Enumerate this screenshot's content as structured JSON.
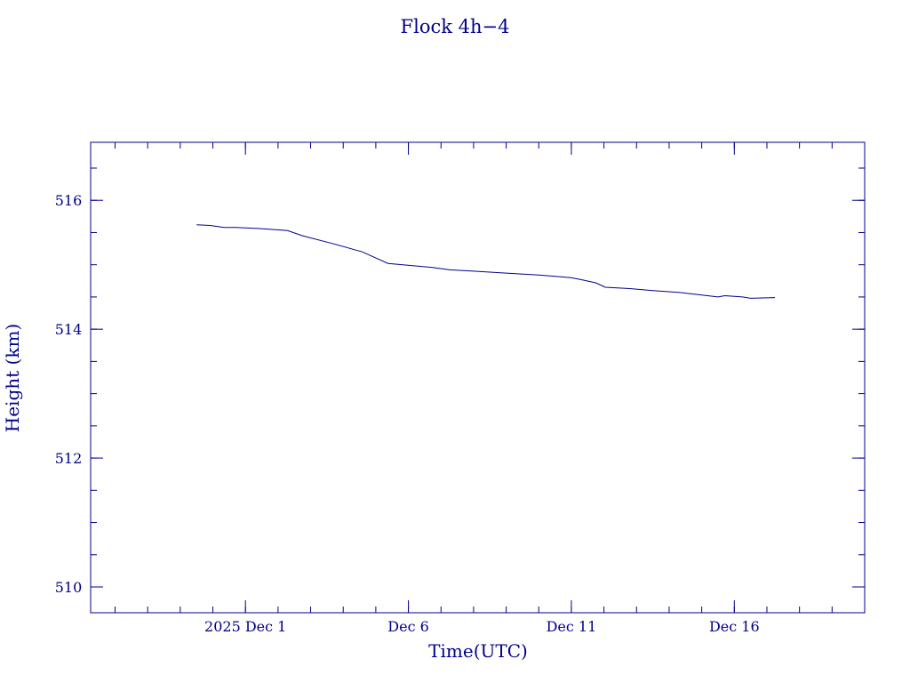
{
  "chart_data": {
    "type": "line",
    "title": "Flock 4h−4",
    "xlabel": "Time(UTC)",
    "ylabel": "Height (km)",
    "x_axis_type": "date",
    "x_range": [
      "2025-11-26T06:00",
      "2025-12-20T00:00"
    ],
    "ylim": [
      509.6,
      516.9
    ],
    "y_ticks": [
      510,
      512,
      514,
      516
    ],
    "y_tick_labels": [
      "510",
      "512",
      "514",
      "516"
    ],
    "x_ticks": [
      "2025-12-01",
      "2025-12-06",
      "2025-12-11",
      "2025-12-16"
    ],
    "x_tick_labels": [
      "2025 Dec  1",
      "Dec  6",
      "Dec 11",
      "Dec 16"
    ],
    "grid": false,
    "color": "#00008b",
    "series": [
      {
        "x": [
          "2025-11-29T12:00",
          "2025-11-29T22:00",
          "2025-11-30T08:00",
          "2025-11-30T17:00",
          "2025-12-01T12:00",
          "2025-12-02T07:00",
          "2025-12-02T18:00",
          "2025-12-03T16:00",
          "2025-12-04T14:00",
          "2025-12-05T09:00",
          "2025-12-06T17:00",
          "2025-12-07T07:00",
          "2025-12-08T00:00",
          "2025-12-09T00:00",
          "2025-12-10T00:00",
          "2025-12-11T00:00",
          "2025-12-11T07:00",
          "2025-12-11T18:00",
          "2025-12-12T01:00",
          "2025-12-12T19:00",
          "2025-12-13T12:00",
          "2025-12-14T07:00",
          "2025-12-15T00:00",
          "2025-12-15T12:00",
          "2025-12-15T17:00",
          "2025-12-16T06:00",
          "2025-12-16T12:00",
          "2025-12-17T06:00"
        ],
        "y": [
          515.62,
          515.61,
          515.58,
          515.58,
          515.56,
          515.53,
          515.45,
          515.33,
          515.2,
          515.02,
          514.96,
          514.92,
          514.9,
          514.87,
          514.84,
          514.8,
          514.77,
          514.72,
          514.65,
          514.63,
          514.6,
          514.57,
          514.53,
          514.5,
          514.52,
          514.5,
          514.48,
          514.49
        ]
      }
    ]
  }
}
